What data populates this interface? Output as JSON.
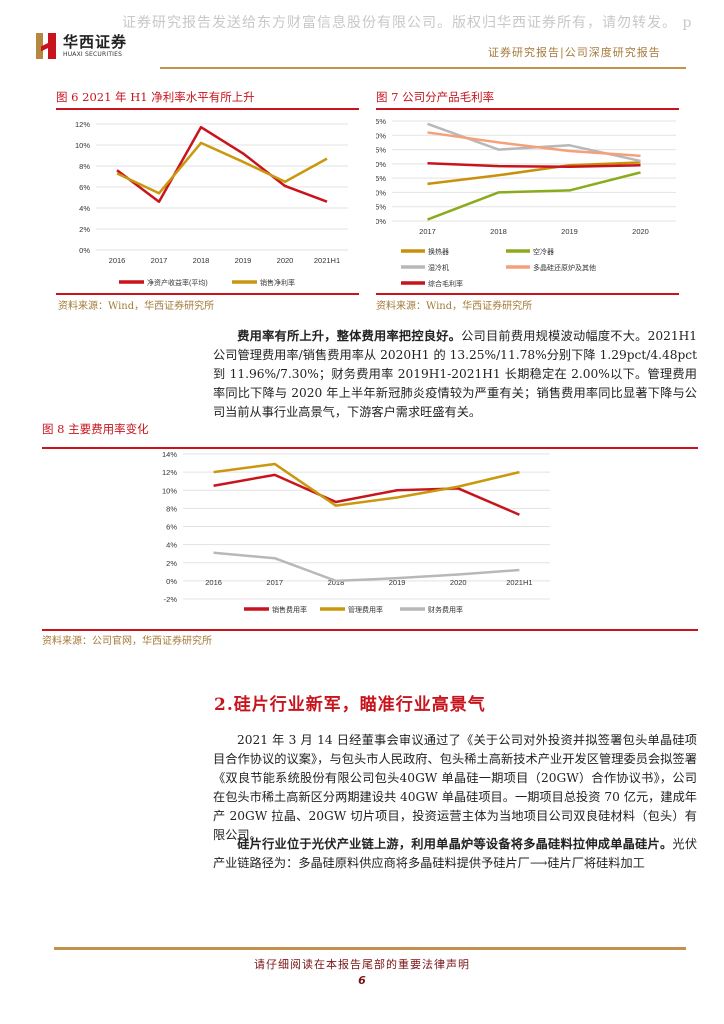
{
  "watermark": "证券研究报告发送给东方财富信息股份有限公司。版权归华西证券所有，请勿转发。 p",
  "header": {
    "logo_cn": "华西证券",
    "logo_en": "HUAXI SECURITIES",
    "subtitle": "证券研究报告|公司深度研究报告"
  },
  "figures": {
    "fig6": {
      "title": "图 6 2021 年 H1 净利率水平有所上升",
      "source": "资料来源：Wind，华西证券研究所"
    },
    "fig7": {
      "title": "图 7  公司分产品毛利率",
      "source": "资料来源：Wind，华西证券研究所"
    },
    "fig8": {
      "title": "图 8  主要费用率变化",
      "source": "资料来源：公司官网，华西证券研究所"
    }
  },
  "chart_data": [
    {
      "id": "fig6",
      "type": "line",
      "title": "2021 年 H1 净利率水平有所上升",
      "categories": [
        "2016",
        "2017",
        "2018",
        "2019",
        "2020",
        "2021H1"
      ],
      "series": [
        {
          "name": "净资产收益率(平均)",
          "color": "#c8141c",
          "values": [
            7.6,
            4.6,
            11.7,
            9.2,
            6.1,
            4.6
          ]
        },
        {
          "name": "销售净利率",
          "color": "#c9980e",
          "values": [
            7.3,
            5.4,
            10.2,
            8.4,
            6.5,
            8.7
          ]
        }
      ],
      "yticks": [
        "0%",
        "2%",
        "4%",
        "6%",
        "8%",
        "10%",
        "12%"
      ],
      "ylim": [
        0,
        12
      ],
      "grid": true,
      "legend_position": "bottom"
    },
    {
      "id": "fig7",
      "type": "line",
      "title": "公司分产品毛利率",
      "categories": [
        "2017",
        "2018",
        "2019",
        "2020"
      ],
      "series": [
        {
          "name": "换热器",
          "color": "#c9900e",
          "values": [
            23.0,
            26.0,
            29.5,
            30.5
          ]
        },
        {
          "name": "空冷器",
          "color": "#8aab1e",
          "values": [
            10.5,
            20.0,
            20.7,
            27.0
          ]
        },
        {
          "name": "湿冷机",
          "color": "#b8b8b8",
          "values": [
            44.0,
            35.0,
            36.5,
            31.0
          ]
        },
        {
          "name": "多晶硅还原炉及其他",
          "color": "#f5a07a",
          "values": [
            41.0,
            37.5,
            34.5,
            32.8
          ]
        },
        {
          "name": "综合毛利率",
          "color": "#c8141c",
          "values": [
            30.2,
            29.2,
            29.0,
            29.5
          ]
        }
      ],
      "yticks": [
        "10%",
        "15%",
        "20%",
        "25%",
        "30%",
        "35%",
        "40%",
        "45%"
      ],
      "ylim": [
        10,
        45
      ],
      "grid": true,
      "legend_position": "bottom"
    },
    {
      "id": "fig8",
      "type": "line",
      "title": "主要费用率变化",
      "categories": [
        "2016",
        "2017",
        "2018",
        "2019",
        "2020",
        "2021H1"
      ],
      "series": [
        {
          "name": "销售费用率",
          "color": "#c8141c",
          "values": [
            10.5,
            11.7,
            8.7,
            10.0,
            10.2,
            7.3
          ]
        },
        {
          "name": "管理费用率",
          "color": "#c9980e",
          "values": [
            12.0,
            12.9,
            8.3,
            9.2,
            10.4,
            12.0
          ]
        },
        {
          "name": "财务费用率",
          "color": "#b8b8b8",
          "values": [
            3.1,
            2.5,
            0.0,
            0.3,
            0.7,
            1.2
          ]
        }
      ],
      "yticks": [
        "-2%",
        "0%",
        "2%",
        "4%",
        "6%",
        "8%",
        "10%",
        "12%",
        "14%"
      ],
      "ylim": [
        -2,
        14
      ],
      "grid": true,
      "legend_position": "bottom"
    }
  ],
  "paragraph1": {
    "bold": "费用率有所上升，整体费用率把控良好。",
    "text": "公司目前费用规模波动幅度不大。2021H1 公司管理费用率/销售费用率从 2020H1 的 13.25%/11.78%分别下降 1.29pct/4.48pct 到 11.96%/7.30%；财务费用率 2019H1-2021H1 长期稳定在 2.00%以下。管理费用率同比下降与 2020 年上半年新冠肺炎疫情较为严重有关；销售费用率同比显著下降与公司当前从事行业高景气，下游客户需求旺盛有关。"
  },
  "section2": {
    "title": "2.硅片行业新军，瞄准行业高景气"
  },
  "paragraph2": {
    "text": "2021 年 3 月 14 日经董事会审议通过了《关于公司对外投资并拟签署包头单晶硅项目合作协议的议案》，与包头市人民政府、包头稀土高新技术产业开发区管理委员会拟签署《双良节能系统股份有限公司包头40GW 单晶硅一期项目（20GW）合作协议书》，公司在包头市稀土高新区分两期建设共 40GW 单晶硅项目。一期项目总投资 70 亿元，建成年产 20GW 拉晶、20GW 切片项目，投资运营主体为当地项目公司双良硅材料（包头）有限公司。"
  },
  "paragraph3": {
    "bold": "硅片行业位于光伏产业链上游，利用单晶炉等设备将多晶硅料拉伸成单晶硅片。",
    "text": "光伏产业链路径为：多晶硅原料供应商将多晶硅料提供予硅片厂⟶硅片厂将硅料加工"
  },
  "footer": {
    "note": "请仔细阅读在本报告尾部的重要法律声明",
    "page": "6"
  }
}
